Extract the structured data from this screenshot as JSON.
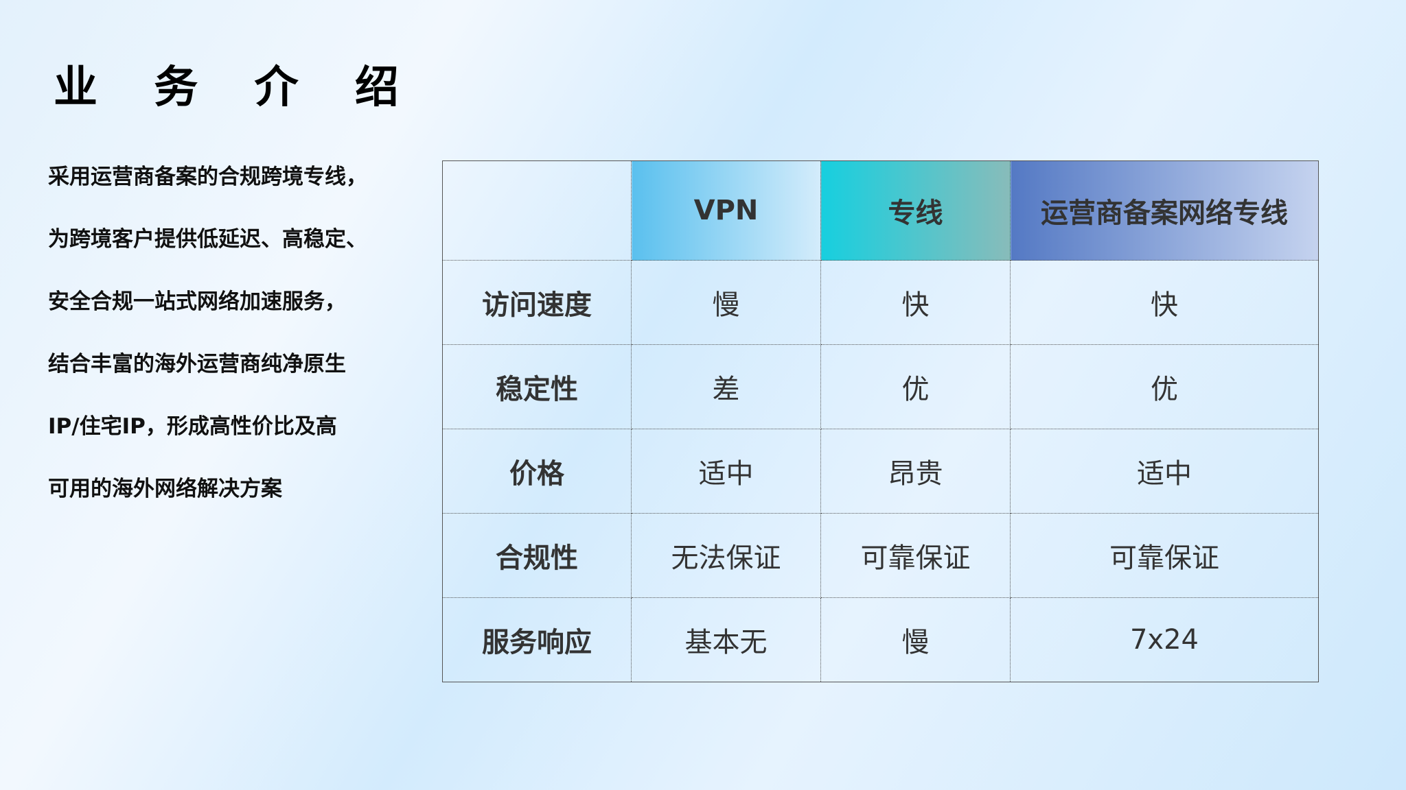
{
  "title": "业 务 介 绍",
  "description": [
    "采用运营商备案的合规跨境专线，",
    "为跨境客户提供低延迟、高稳定、",
    "安全合规一站式网络加速服务，",
    "结合丰富的海外运营商纯净原生",
    "IP/住宅IP，形成高性价比及高",
    "可用的海外网络解决方案"
  ],
  "table": {
    "headers": [
      "",
      "VPN",
      "专线",
      "运营商备案网络专线"
    ],
    "rows": [
      [
        "访问速度",
        "慢",
        "快",
        "快"
      ],
      [
        "稳定性",
        "差",
        "优",
        "优"
      ],
      [
        "价格",
        "适中",
        "昂贵",
        "适中"
      ],
      [
        "合规性",
        "无法保证",
        "可靠保证",
        "可靠保证"
      ],
      [
        "服务响应",
        "基本无",
        "慢",
        "7x24"
      ]
    ]
  },
  "colors": {
    "vpn_header": "#5ac0ee",
    "line_header": "#17cfdf",
    "operator_header": "#5479c4"
  }
}
